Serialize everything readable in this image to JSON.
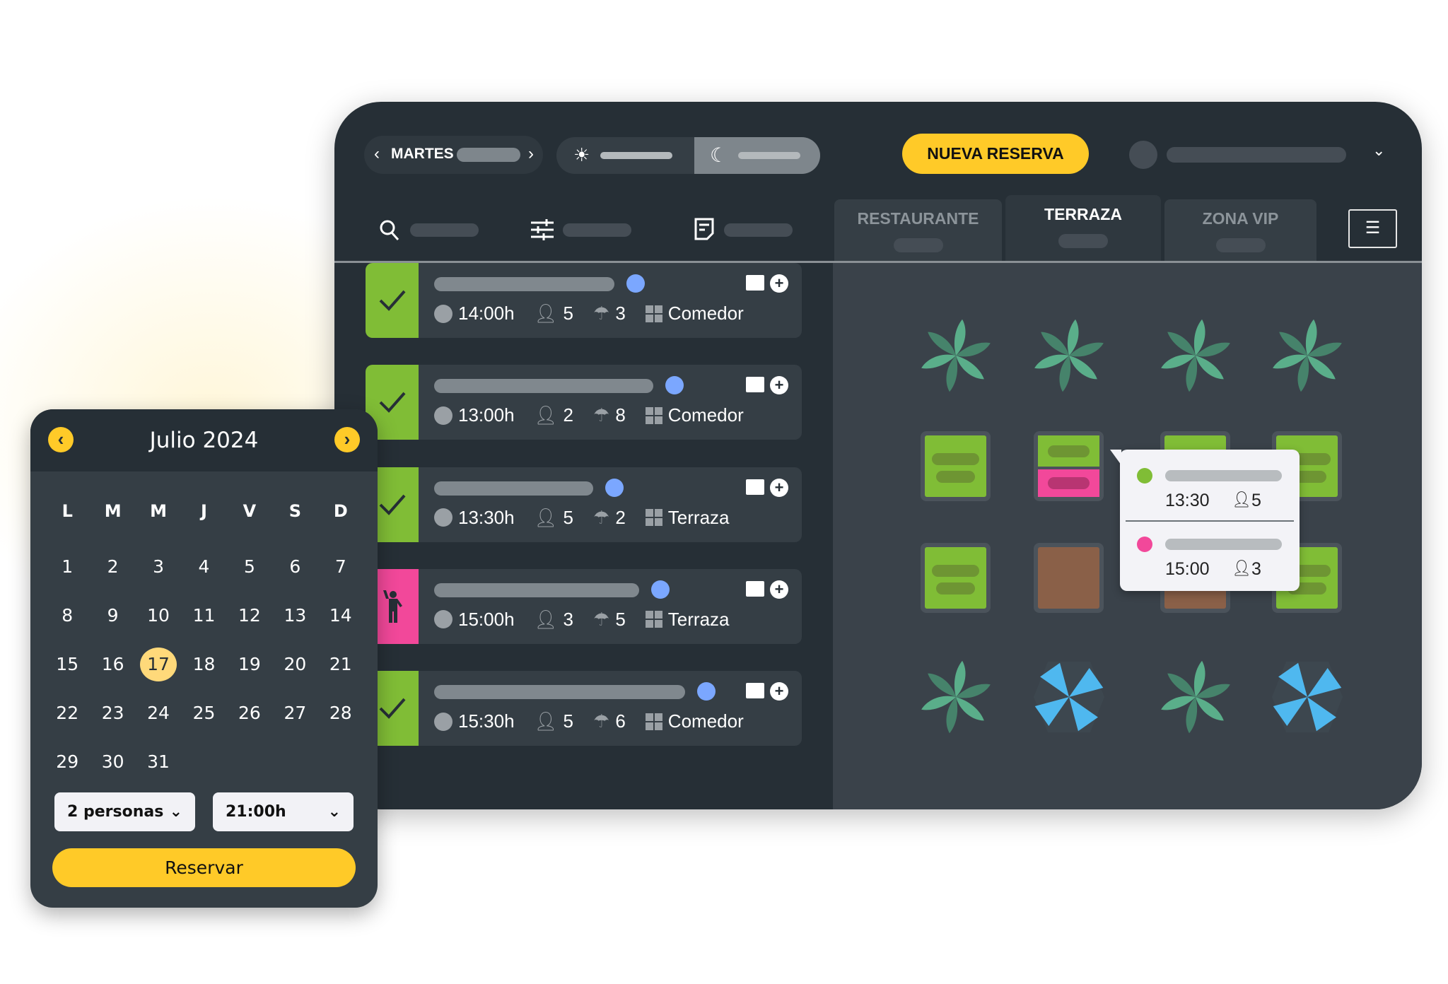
{
  "header": {
    "day_label": "MARTES",
    "new_booking_label": "NUEVA RESERVA"
  },
  "tabs": [
    {
      "label": "RESTAURANTE",
      "active": false
    },
    {
      "label": "TERRAZA",
      "active": true
    },
    {
      "label": "ZONA VIP",
      "active": false
    }
  ],
  "reservations": [
    {
      "status": "confirmed",
      "time": "14:00h",
      "guests": "5",
      "table": "3",
      "zone": "Comedor"
    },
    {
      "status": "confirmed",
      "time": "13:00h",
      "guests": "2",
      "table": "8",
      "zone": "Comedor"
    },
    {
      "status": "confirmed",
      "time": "13:30h",
      "guests": "5",
      "table": "2",
      "zone": "Terraza"
    },
    {
      "status": "seated",
      "time": "15:00h",
      "guests": "3",
      "table": "5",
      "zone": "Terraza"
    },
    {
      "status": "confirmed",
      "time": "15:30h",
      "guests": "5",
      "table": "6",
      "zone": "Comedor"
    }
  ],
  "tooltip": {
    "entries": [
      {
        "time": "13:30",
        "guests": "5",
        "color": "#80bd36"
      },
      {
        "time": "15:00",
        "guests": "3",
        "color": "#f2489a"
      }
    ]
  },
  "calendar": {
    "month": "Julio 2024",
    "weekdays": [
      "L",
      "M",
      "M",
      "J",
      "V",
      "S",
      "D"
    ],
    "days": 31,
    "start_offset": 0,
    "selected": 17,
    "party": "2 personas",
    "time": "21:00h",
    "submit": "Reservar"
  },
  "colors": {
    "accent": "#ffca28",
    "confirmed": "#80bd36",
    "seated": "#f2489a",
    "dot": "#7ba7ff",
    "umbrella": "#4fb8ef",
    "plant": "#5aae8a"
  }
}
